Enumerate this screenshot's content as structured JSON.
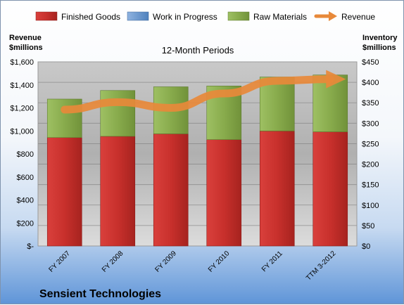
{
  "chart_data": {
    "type": "bar",
    "stacked": true,
    "title": "12-Month Periods",
    "company": "Sensient Technologies",
    "left_axis_label": [
      "Revenue",
      "$millions"
    ],
    "right_axis_label": [
      "Inventory",
      "$millions"
    ],
    "categories": [
      "FY 2007",
      "FY 2008",
      "FY 2009",
      "FY 2010",
      "FY 2011",
      "TTM 3-2012"
    ],
    "left_ticks": [
      "$-",
      "$200",
      "$400",
      "$600",
      "$800",
      "$1,000",
      "$1,200",
      "$1,400",
      "$1,600"
    ],
    "right_ticks": [
      "$0",
      "$50",
      "$100",
      "$150",
      "$200",
      "$250",
      "$300",
      "$350",
      "$400",
      "$450"
    ],
    "left_ylim": [
      0,
      1600
    ],
    "right_ylim": [
      0,
      450
    ],
    "legend_position": "top",
    "series": [
      {
        "name": "Finished Goods",
        "axis": "right",
        "color": "#c0302e",
        "values": [
          265,
          268,
          274,
          260,
          281,
          279
        ]
      },
      {
        "name": "Work in Progress",
        "axis": "right",
        "color": "#4f81bd",
        "values": [
          0,
          0,
          0,
          0,
          0,
          0
        ]
      },
      {
        "name": "Raw Materials",
        "axis": "right",
        "color": "#9bbb59",
        "values": [
          94,
          112,
          115,
          131,
          132,
          139
        ]
      },
      {
        "name": "Revenue",
        "axis": "left",
        "type": "line",
        "color": "#e8893a",
        "values": [
          1185,
          1250,
          1200,
          1325,
          1435,
          1450
        ]
      }
    ],
    "grid": true
  }
}
